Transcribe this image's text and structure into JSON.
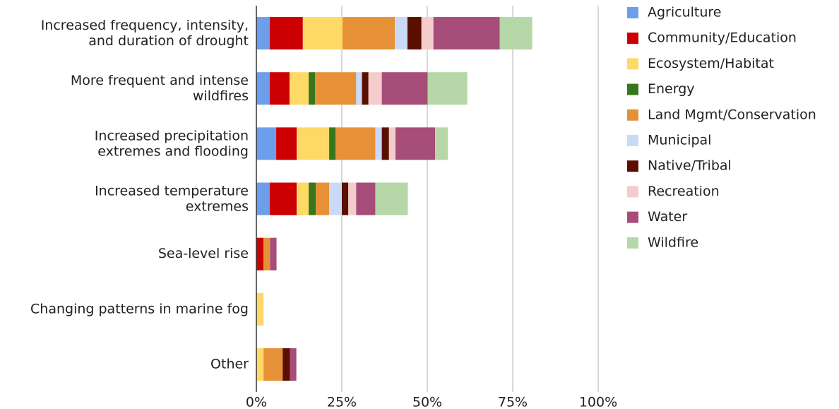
{
  "chart_data": {
    "type": "stacked-bar-horizontal",
    "categories": [
      "Increased frequency, intensity,\nand duration of drought",
      "More frequent and intense\nwildfires",
      "Increased precipitation\nextremes and flooding",
      "Increased temperature\nextremes",
      "Sea-level rise",
      "Changing patterns in marine fog",
      "Other"
    ],
    "series": [
      {
        "name": "Agriculture",
        "color": "#6d9eeb",
        "values": [
          3.9,
          3.9,
          5.8,
          3.9,
          0,
          0,
          0
        ]
      },
      {
        "name": "Community/Education",
        "color": "#cc0000",
        "values": [
          9.7,
          5.8,
          6,
          7.9,
          2.1,
          0,
          0
        ]
      },
      {
        "name": "Ecosystem/Habitat",
        "color": "#ffd966",
        "values": [
          11.6,
          5.6,
          9.5,
          3.5,
          0,
          2.1,
          2.1
        ]
      },
      {
        "name": "Energy",
        "color": "#38761d",
        "values": [
          0,
          1.9,
          1.9,
          2.1,
          0,
          0,
          0
        ]
      },
      {
        "name": "Land Mgmt/Conservation",
        "color": "#e69138",
        "values": [
          15.3,
          12,
          11.6,
          3.9,
          1.9,
          0,
          5.6
        ]
      },
      {
        "name": "Municipal",
        "color": "#c9daf8",
        "values": [
          3.7,
          1.7,
          1.9,
          3.7,
          0,
          0,
          0
        ]
      },
      {
        "name": "Native/Tribal",
        "color": "#5b0f00",
        "values": [
          4.1,
          1.9,
          2.1,
          1.9,
          0,
          0,
          2.1
        ]
      },
      {
        "name": "Recreation",
        "color": "#f4cccc",
        "values": [
          3.5,
          3.9,
          1.9,
          2.3,
          0,
          0,
          0
        ]
      },
      {
        "name": "Water",
        "color": "#a64d79",
        "values": [
          19.4,
          13.4,
          11.6,
          5.6,
          1.9,
          0,
          1.9
        ]
      },
      {
        "name": "Wildfire",
        "color": "#b6d7a8",
        "values": [
          9.5,
          11.6,
          3.7,
          9.5,
          0,
          0,
          0
        ]
      }
    ],
    "xlim": [
      0,
      100
    ],
    "xticks": [
      {
        "value": 0,
        "label": "0%"
      },
      {
        "value": 25,
        "label": "25%"
      },
      {
        "value": 50,
        "label": "50%"
      },
      {
        "value": 75,
        "label": "75%"
      },
      {
        "value": 100,
        "label": "100%"
      }
    ],
    "grid": true,
    "legend": "right"
  }
}
